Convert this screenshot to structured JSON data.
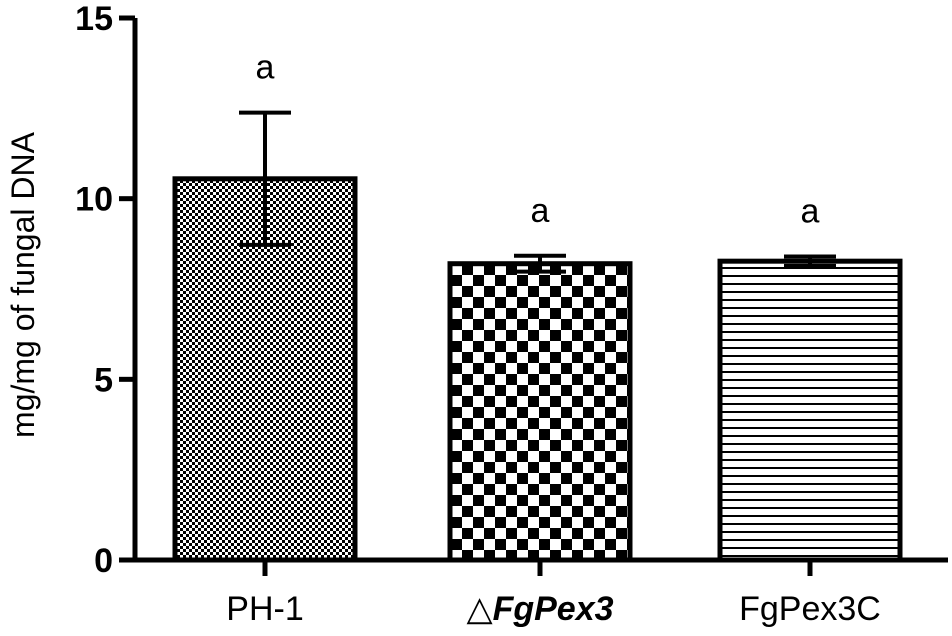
{
  "chart_data": {
    "type": "bar",
    "title": "",
    "xlabel": "",
    "ylabel": "mg/mg of fungal DNA",
    "ylim": [
      0,
      15
    ],
    "yticks": [
      0,
      5,
      10,
      15
    ],
    "grid": false,
    "categories": [
      {
        "prefix": "",
        "name": "PH-1",
        "italic": false
      },
      {
        "prefix": "△",
        "name": "FgPex3",
        "italic": true
      },
      {
        "prefix": "",
        "name": "FgPex3C",
        "italic": false
      }
    ],
    "values": [
      10.55,
      8.2,
      8.27
    ],
    "errors": [
      1.83,
      0.22,
      0.13
    ],
    "significance": [
      "a",
      "a",
      "a"
    ],
    "patterns": [
      "fine-checker",
      "coarse-checker",
      "horizontal-lines"
    ],
    "colors": {
      "bar_fill": "#ffffff",
      "pattern": "#000000",
      "axis": "#000000"
    }
  }
}
